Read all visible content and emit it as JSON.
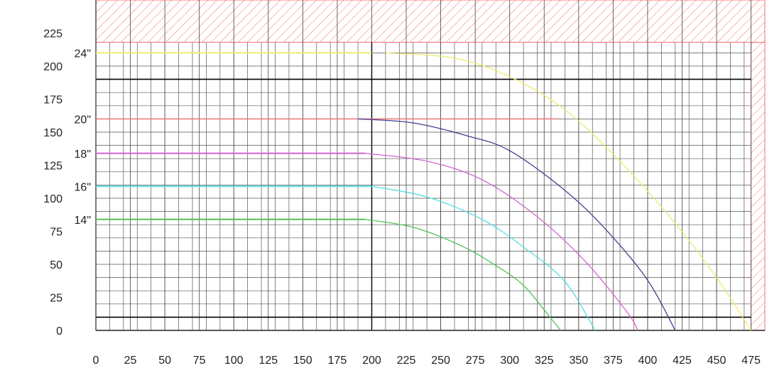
{
  "chart_data": {
    "type": "line",
    "title": "",
    "xlabel": "",
    "ylabel": "",
    "xlim": [
      0,
      485
    ],
    "ylim": [
      0,
      250
    ],
    "x_ticks": [
      0,
      25,
      50,
      75,
      100,
      125,
      150,
      175,
      200,
      225,
      250,
      275,
      300,
      325,
      350,
      375,
      400,
      425,
      450,
      475
    ],
    "y_ticks": [
      0,
      25,
      50,
      75,
      100,
      125,
      150,
      175,
      200,
      225
    ],
    "grid": true,
    "minor_grid_step": 10,
    "restricted_zones": [
      {
        "type": "top-band",
        "y_from": 218,
        "y_to": 250,
        "color": "#ff6b6b"
      },
      {
        "type": "right-band",
        "x_from": 475,
        "x_to": 485,
        "y_from": 0,
        "y_to": 218,
        "color": "#ff6b6b"
      }
    ],
    "reference_lines": [
      {
        "axis": "y",
        "value": 190,
        "color": "#000000"
      },
      {
        "axis": "y",
        "value": 10,
        "color": "#000000"
      },
      {
        "axis": "x",
        "value": 200,
        "color": "#000000"
      }
    ],
    "series": [
      {
        "name": "24\"",
        "color": "#ecec70",
        "flat_y": 210,
        "flat_to_x": 200,
        "curve": [
          [
            210,
            210
          ],
          [
            260,
            206
          ],
          [
            300,
            192
          ],
          [
            340,
            167
          ],
          [
            380,
            128
          ],
          [
            420,
            81
          ],
          [
            450,
            40
          ],
          [
            475,
            0
          ]
        ]
      },
      {
        "name": "20\"",
        "color": "#ee7575",
        "line": [
          [
            0,
            160
          ],
          [
            335,
            160
          ]
        ]
      },
      {
        "name": "20\"",
        "color": "#404090",
        "curve": [
          [
            190,
            160
          ],
          [
            230,
            157
          ],
          [
            270,
            147
          ],
          [
            300,
            136
          ],
          [
            340,
            106
          ],
          [
            370,
            76
          ],
          [
            400,
            38
          ],
          [
            420,
            0
          ]
        ]
      },
      {
        "name": "18\"",
        "color": "#d066d0",
        "flat_y": 134,
        "flat_to_x": 195,
        "curve": [
          [
            195,
            134
          ],
          [
            240,
            128
          ],
          [
            280,
            114
          ],
          [
            320,
            86
          ],
          [
            355,
            52
          ],
          [
            385,
            14
          ],
          [
            393,
            0
          ]
        ]
      },
      {
        "name": "16\"",
        "color": "#55dddd",
        "flat_y": 109,
        "flat_to_x": 200,
        "curve": [
          [
            200,
            109
          ],
          [
            240,
            101
          ],
          [
            280,
            84
          ],
          [
            310,
            63
          ],
          [
            340,
            37
          ],
          [
            362,
            0
          ]
        ]
      },
      {
        "name": "14\"",
        "color": "#55c055",
        "flat_y": 84,
        "flat_to_x": 195,
        "curve": [
          [
            195,
            84
          ],
          [
            230,
            78
          ],
          [
            265,
            64
          ],
          [
            290,
            49
          ],
          [
            310,
            34
          ],
          [
            330,
            9
          ],
          [
            337,
            0
          ]
        ]
      }
    ]
  }
}
